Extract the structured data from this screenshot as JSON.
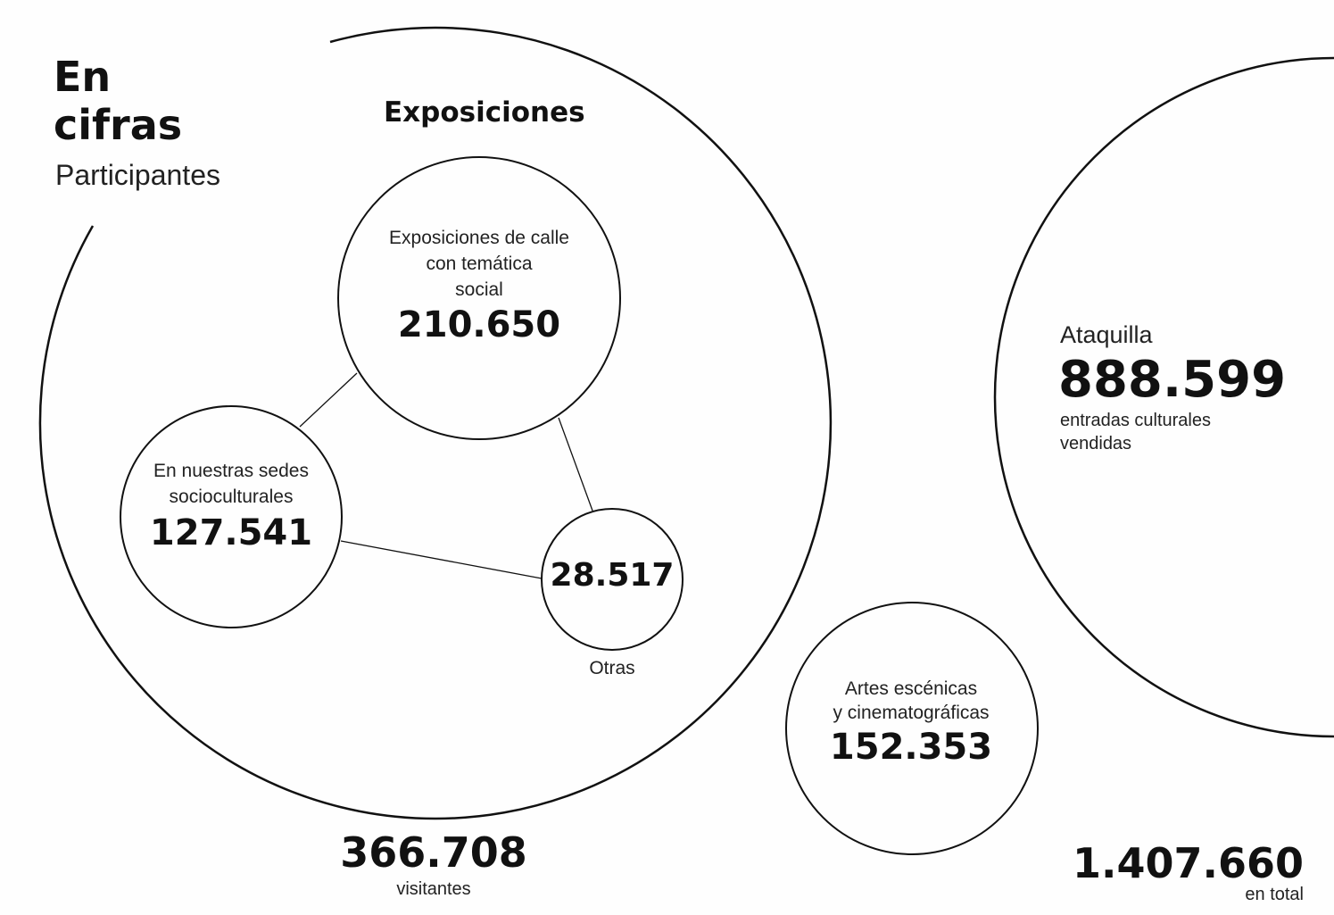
{
  "header": {
    "title_line1": "En",
    "title_line2": "cifras",
    "subtitle": "Participantes"
  },
  "exposiciones": {
    "heading": "Exposiciones",
    "calle": {
      "label_l1": "Exposiciones de calle",
      "label_l2": "con temática",
      "label_l3": "social",
      "value": "210.650"
    },
    "sedes": {
      "label_l1": "En nuestras sedes",
      "label_l2": "socioculturales",
      "value": "127.541"
    },
    "otras": {
      "value": "28.517",
      "label": "Otras"
    },
    "total": {
      "value": "366.708",
      "label": "visitantes"
    }
  },
  "artes": {
    "label_l1": "Artes escénicas",
    "label_l2": "y cinematográficas",
    "value": "152.353"
  },
  "ataquilla": {
    "heading": "Ataquilla",
    "value": "888.599",
    "label_l1": "entradas culturales",
    "label_l2": "vendidas"
  },
  "grand_total": {
    "value": "1.407.660",
    "label": "en total"
  },
  "colors": {
    "line": "#111111",
    "background": "#fefefe"
  }
}
